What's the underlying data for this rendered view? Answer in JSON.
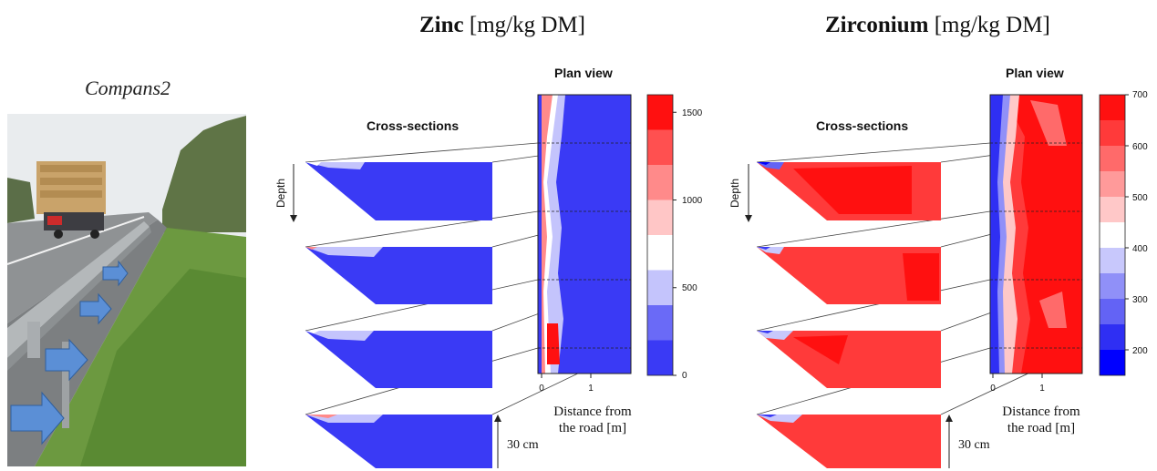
{
  "photo": {
    "site_label": "Compans2"
  },
  "panels": [
    {
      "element": "Zinc",
      "unit": "[mg/kg DM]",
      "plan_view_label": "Plan view",
      "cross_sections_label": "Cross-sections",
      "depth_label": "Depth",
      "xlabel_line1": "Distance from",
      "xlabel_line2": "the road [m]",
      "x_ticks": [
        "0",
        "1"
      ],
      "scale_label": "30 cm",
      "colorbar": {
        "ticks": [
          "1500",
          "1000",
          "500",
          "0"
        ],
        "range": [
          0,
          1600
        ]
      }
    },
    {
      "element": "Zirconium",
      "unit": "[mg/kg DM]",
      "plan_view_label": "Plan view",
      "cross_sections_label": "Cross-sections",
      "depth_label": "Depth",
      "xlabel_line1": "Distance from",
      "xlabel_line2": "the road [m]",
      "x_ticks": [
        "0",
        "1"
      ],
      "scale_label": "30 cm",
      "colorbar": {
        "ticks": [
          "700",
          "600",
          "500",
          "400",
          "300",
          "200"
        ],
        "range": [
          150,
          700
        ]
      }
    }
  ],
  "colors": {
    "high": "#ff0000",
    "low": "#3a3af5",
    "neutral": "#ffffff"
  },
  "chart_data": [
    {
      "type": "heatmap",
      "title": "Zinc [mg/kg DM]",
      "xlabel": "Distance from the road [m]",
      "ylabel": "Depth",
      "colorbar_ticks": [
        1500,
        1000,
        500,
        0
      ],
      "colorbar_levels": [
        0,
        200,
        400,
        600,
        800,
        1000,
        1200,
        1400,
        1600
      ],
      "colorbar_colors": [
        "#3a3af5",
        "#6a6af7",
        "#c4c4fc",
        "#ffffff",
        "#ffc6c6",
        "#ff8a8a",
        "#ff5050",
        "#ff1010"
      ]
    },
    {
      "type": "heatmap",
      "title": "Zirconium [mg/kg DM]",
      "xlabel": "Distance from the road [m]",
      "ylabel": "Depth",
      "colorbar_ticks": [
        700,
        600,
        500,
        400,
        300,
        200
      ],
      "colorbar_levels": [
        150,
        200,
        250,
        300,
        350,
        400,
        450,
        500,
        550,
        600,
        650,
        700
      ],
      "colorbar_colors": [
        "#0000ff",
        "#2f2ff3",
        "#6363f5",
        "#9090f8",
        "#c8c8fc",
        "#ffffff",
        "#ffc8c8",
        "#ff9a9a",
        "#ff6a6a",
        "#ff3a3a",
        "#ff1010"
      ]
    }
  ]
}
